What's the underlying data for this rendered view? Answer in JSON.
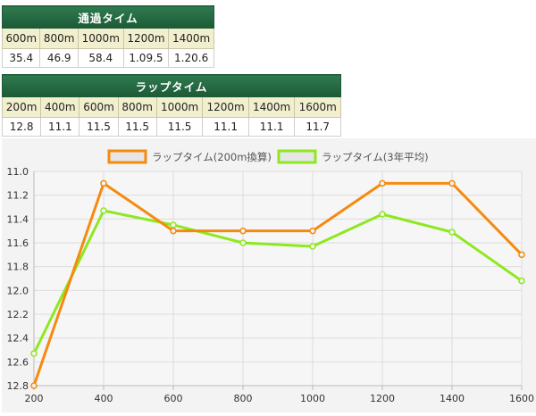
{
  "passing_table": {
    "title": "通過タイム",
    "headers": [
      "600m",
      "800m",
      "1000m",
      "1200m",
      "1400m"
    ],
    "values": [
      "35.4",
      "46.9",
      "58.4",
      "1.09.5",
      "1.20.6"
    ]
  },
  "lap_table": {
    "title": "ラップタイム",
    "headers": [
      "200m",
      "400m",
      "600m",
      "800m",
      "1000m",
      "1200m",
      "1400m",
      "1600m"
    ],
    "values": [
      "12.8",
      "11.1",
      "11.5",
      "11.5",
      "11.5",
      "11.1",
      "11.1",
      "11.7"
    ]
  },
  "chart_data": {
    "type": "line",
    "categories": [
      "200",
      "400",
      "600",
      "800",
      "1000",
      "1200",
      "1400",
      "1600"
    ],
    "series": [
      {
        "name": "ラップタイム(200m換算)",
        "color": "#f58a0f",
        "values": [
          12.8,
          11.1,
          11.5,
          11.5,
          11.5,
          11.1,
          11.1,
          11.7
        ]
      },
      {
        "name": "ラップタイム(3年平均)",
        "color": "#8ee81f",
        "values": [
          12.53,
          11.33,
          11.45,
          11.6,
          11.63,
          11.36,
          11.51,
          11.92
        ]
      }
    ],
    "yticks": [
      "11.0",
      "11.2",
      "11.4",
      "11.6",
      "11.8",
      "12.0",
      "12.2",
      "12.4",
      "12.6",
      "12.8"
    ],
    "ylim": [
      11.0,
      12.8
    ],
    "y_inverted": true,
    "grid": true,
    "legend": "top-center"
  }
}
